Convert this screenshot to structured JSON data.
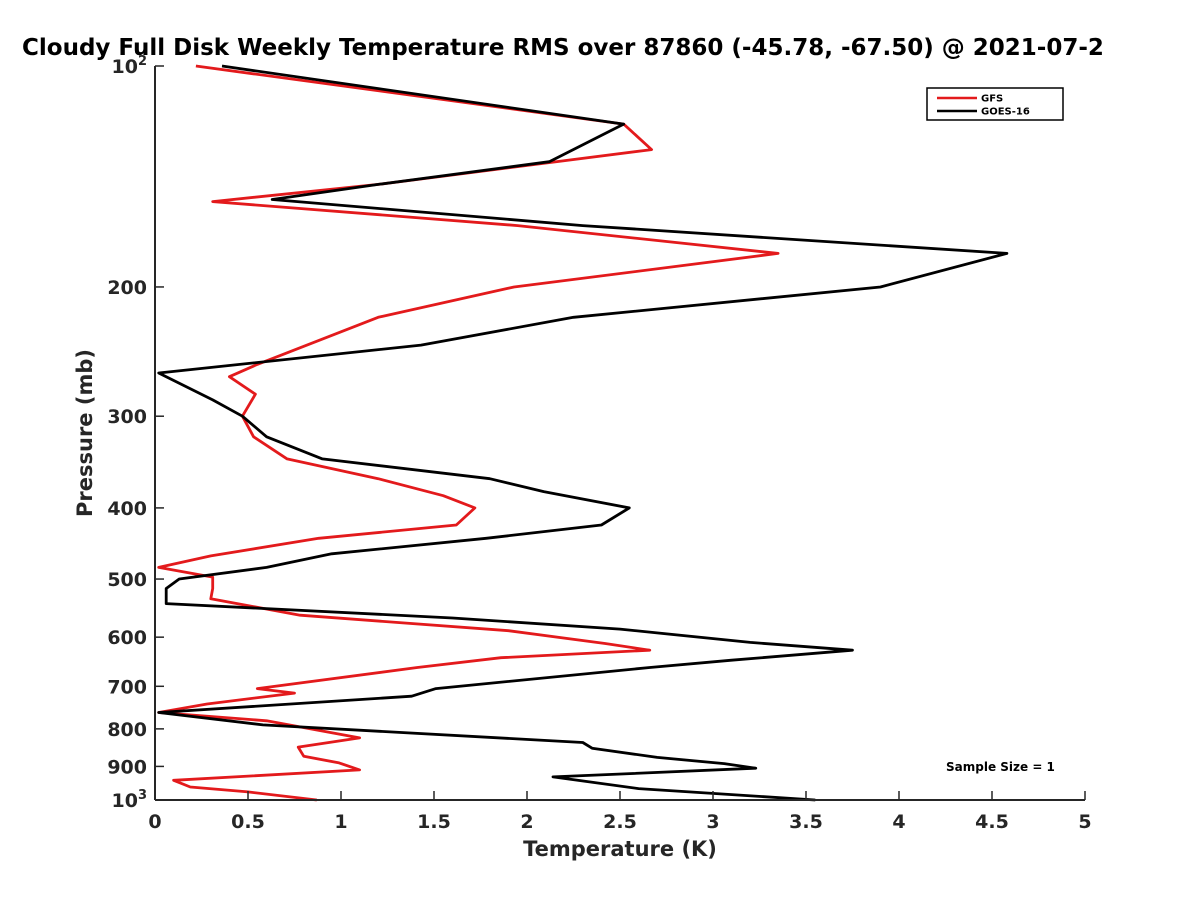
{
  "chart_data": {
    "type": "line",
    "title": "Cloudy Full Disk Weekly Temperature RMS over 87860 (-45.78, -67.50) @ 2021-07-2",
    "xlabel": "Temperature (K)",
    "ylabel": "Pressure (mb)",
    "xlim": [
      0,
      5
    ],
    "ylim": [
      100,
      1000
    ],
    "y_scale": "log",
    "y_reversed": true,
    "grid": false,
    "legend_position": "top-right",
    "x_ticks": [
      {
        "value": 0,
        "label": "0"
      },
      {
        "value": 0.5,
        "label": "0.5"
      },
      {
        "value": 1,
        "label": "1"
      },
      {
        "value": 1.5,
        "label": "1.5"
      },
      {
        "value": 2,
        "label": "2"
      },
      {
        "value": 2.5,
        "label": "2.5"
      },
      {
        "value": 3,
        "label": "3"
      },
      {
        "value": 3.5,
        "label": "3.5"
      },
      {
        "value": 4,
        "label": "4"
      },
      {
        "value": 4.5,
        "label": "4.5"
      },
      {
        "value": 5,
        "label": "5"
      }
    ],
    "y_ticks": [
      {
        "value": 100,
        "base": "10",
        "exp": "2"
      },
      {
        "value": 200,
        "label": "200"
      },
      {
        "value": 300,
        "label": "300"
      },
      {
        "value": 400,
        "label": "400"
      },
      {
        "value": 500,
        "label": "500"
      },
      {
        "value": 600,
        "label": "600"
      },
      {
        "value": 700,
        "label": "700"
      },
      {
        "value": 800,
        "label": "800"
      },
      {
        "value": 900,
        "label": "900"
      },
      {
        "value": 1000,
        "base": "10",
        "exp": "3"
      }
    ],
    "series": [
      {
        "name": "GFS",
        "color": "#e31a1c",
        "points": [
          [
            0.22,
            100
          ],
          [
            2.52,
            120
          ],
          [
            2.67,
            130
          ],
          [
            1.2,
            145
          ],
          [
            0.31,
            153
          ],
          [
            1.95,
            165
          ],
          [
            3.35,
            180
          ],
          [
            1.93,
            200
          ],
          [
            1.2,
            220
          ],
          [
            0.55,
            255
          ],
          [
            0.4,
            265
          ],
          [
            0.54,
            280
          ],
          [
            0.47,
            300
          ],
          [
            0.53,
            320
          ],
          [
            0.71,
            343
          ],
          [
            1.2,
            365
          ],
          [
            1.55,
            385
          ],
          [
            1.72,
            400
          ],
          [
            1.62,
            422
          ],
          [
            0.88,
            440
          ],
          [
            0.3,
            465
          ],
          [
            0.02,
            482
          ],
          [
            0.31,
            497
          ],
          [
            0.31,
            515
          ],
          [
            0.3,
            532
          ],
          [
            0.78,
            560
          ],
          [
            1.9,
            588
          ],
          [
            2.42,
            612
          ],
          [
            2.66,
            625
          ],
          [
            1.86,
            640
          ],
          [
            1.41,
            660
          ],
          [
            0.55,
            705
          ],
          [
            0.75,
            715
          ],
          [
            0.28,
            740
          ],
          [
            0.02,
            760
          ],
          [
            0.6,
            780
          ],
          [
            1.1,
            823
          ],
          [
            0.77,
            847
          ],
          [
            0.8,
            872
          ],
          [
            0.99,
            890
          ],
          [
            1.1,
            910
          ],
          [
            0.1,
            940
          ],
          [
            0.19,
            960
          ],
          [
            0.5,
            975
          ],
          [
            0.87,
            1000
          ]
        ]
      },
      {
        "name": "GOES-16",
        "color": "#000000",
        "points": [
          [
            0.36,
            100
          ],
          [
            2.52,
            120
          ],
          [
            2.12,
            135
          ],
          [
            1.2,
            145
          ],
          [
            0.63,
            152
          ],
          [
            2.3,
            165
          ],
          [
            4.58,
            180
          ],
          [
            3.9,
            200
          ],
          [
            2.25,
            220
          ],
          [
            1.43,
            240
          ],
          [
            0.02,
            262
          ],
          [
            0.31,
            285
          ],
          [
            0.47,
            300
          ],
          [
            0.6,
            320
          ],
          [
            0.9,
            343
          ],
          [
            1.8,
            365
          ],
          [
            2.09,
            380
          ],
          [
            2.55,
            400
          ],
          [
            2.4,
            422
          ],
          [
            1.78,
            440
          ],
          [
            0.95,
            462
          ],
          [
            0.6,
            482
          ],
          [
            0.13,
            500
          ],
          [
            0.06,
            515
          ],
          [
            0.06,
            540
          ],
          [
            1.6,
            565
          ],
          [
            2.5,
            585
          ],
          [
            3.2,
            610
          ],
          [
            3.75,
            625
          ],
          [
            3.1,
            645
          ],
          [
            2.66,
            660
          ],
          [
            1.51,
            705
          ],
          [
            1.38,
            722
          ],
          [
            0.02,
            760
          ],
          [
            0.58,
            790
          ],
          [
            2.3,
            835
          ],
          [
            2.35,
            850
          ],
          [
            2.7,
            875
          ],
          [
            3.06,
            892
          ],
          [
            3.23,
            905
          ],
          [
            2.14,
            930
          ],
          [
            2.6,
            965
          ],
          [
            3.55,
            1000
          ]
        ]
      }
    ],
    "annotations": [
      {
        "text": "Sample Size = 1"
      }
    ]
  }
}
